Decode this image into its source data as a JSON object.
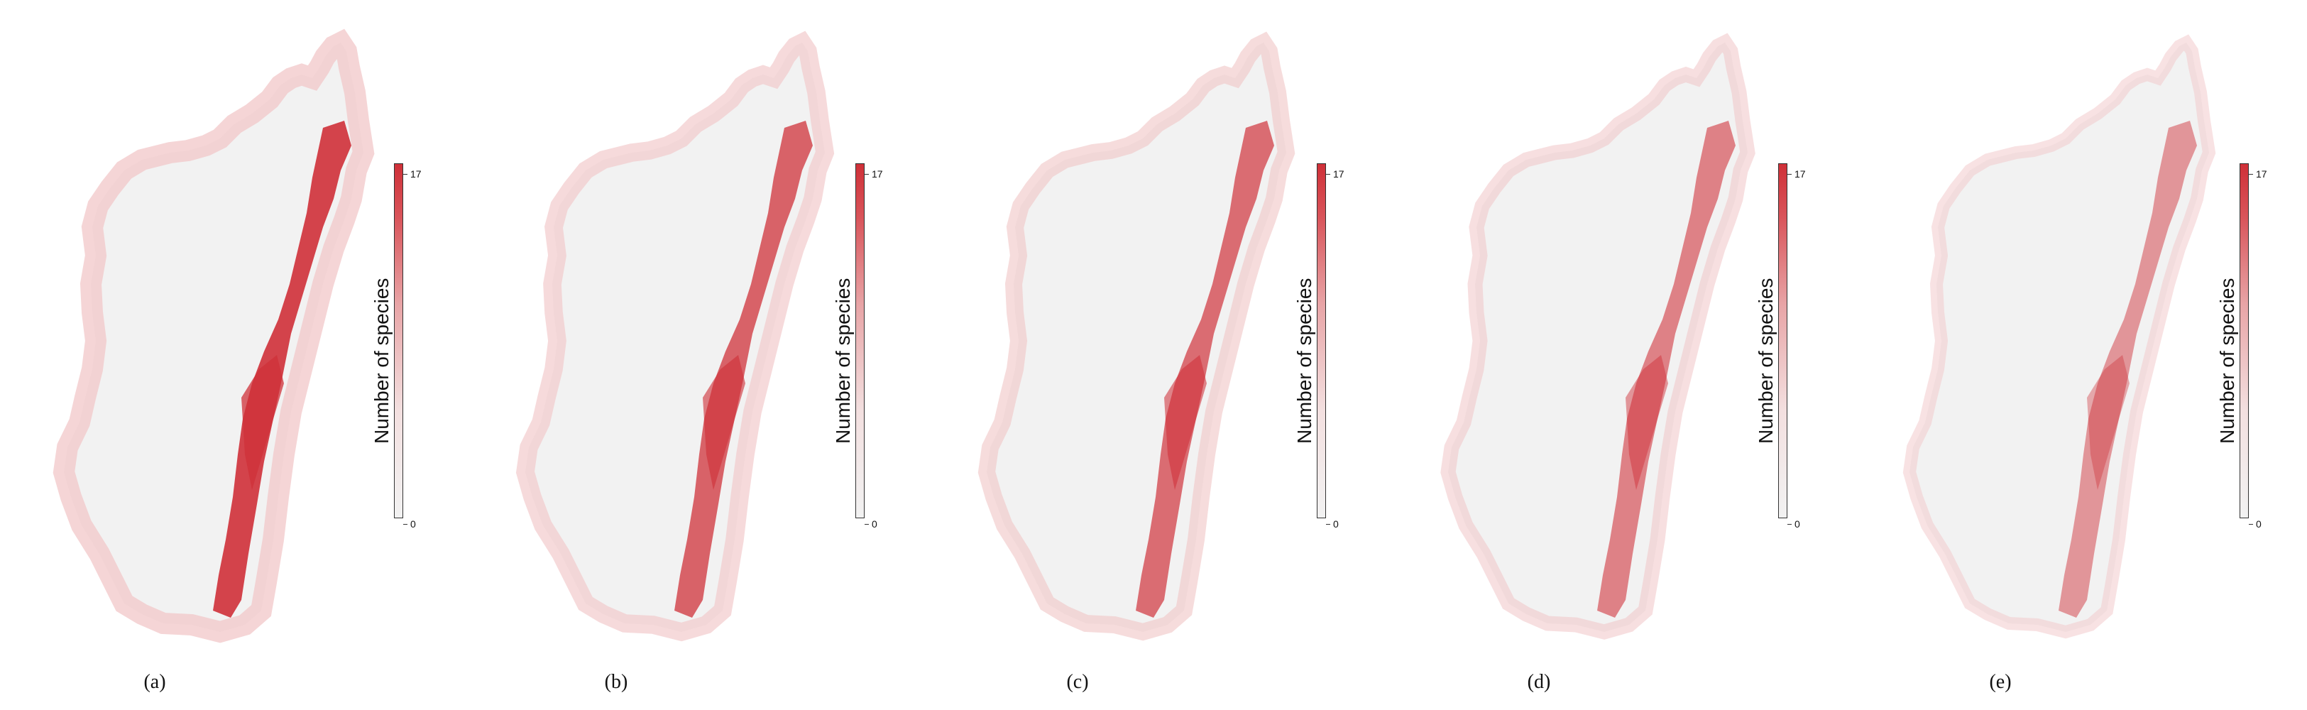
{
  "legend": {
    "title": "Number of species",
    "max_label": "17",
    "min_label": "0",
    "range": [
      0,
      17
    ],
    "colors": {
      "low": "#f2f2f2",
      "high": "#cf3038"
    }
  },
  "panels": [
    {
      "label": "(a)",
      "intensity": 1.0
    },
    {
      "label": "(b)",
      "intensity": 0.78
    },
    {
      "label": "(c)",
      "intensity": 0.7
    },
    {
      "label": "(d)",
      "intensity": 0.55
    },
    {
      "label": "(e)",
      "intensity": 0.4
    }
  ]
}
